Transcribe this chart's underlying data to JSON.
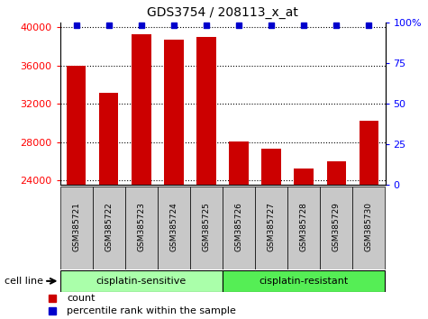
{
  "title": "GDS3754 / 208113_x_at",
  "samples": [
    "GSM385721",
    "GSM385722",
    "GSM385723",
    "GSM385724",
    "GSM385725",
    "GSM385726",
    "GSM385727",
    "GSM385728",
    "GSM385729",
    "GSM385730"
  ],
  "counts": [
    35950,
    33100,
    39300,
    38700,
    39000,
    28050,
    27300,
    25200,
    26000,
    30200
  ],
  "percentile_ranks": [
    100,
    100,
    100,
    100,
    100,
    100,
    100,
    100,
    100,
    100
  ],
  "bar_color": "#cc0000",
  "dot_color": "#0000cc",
  "group1_label": "cisplatin-sensitive",
  "group2_label": "cisplatin-resistant",
  "group1_indices": [
    0,
    1,
    2,
    3,
    4
  ],
  "group2_indices": [
    5,
    6,
    7,
    8,
    9
  ],
  "group1_color": "#aaffaa",
  "group2_color": "#55ee55",
  "ylim_low": 23500,
  "ylim_high": 40500,
  "yticks": [
    24000,
    28000,
    32000,
    36000,
    40000
  ],
  "right_yticks": [
    0,
    25,
    50,
    75,
    100
  ],
  "legend_count_label": "count",
  "legend_percentile_label": "percentile rank within the sample",
  "cell_line_label": "cell line",
  "tick_bg_color": "#c8c8c8"
}
